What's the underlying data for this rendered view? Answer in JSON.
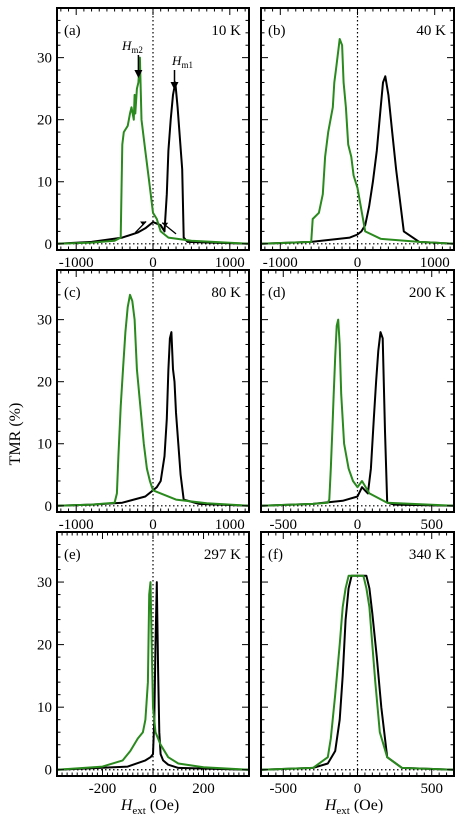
{
  "chart_data": [
    {
      "type": "line",
      "panel": "(a)",
      "temperature": "10 K",
      "xlim": [
        -1250,
        1250
      ],
      "ylim": [
        -1,
        38
      ],
      "xticks": [
        -1000,
        0,
        1000
      ],
      "xtick_labels": [
        "-1000",
        "0",
        "1000"
      ],
      "yticks": [
        0,
        10,
        20,
        30
      ],
      "ytick_labels": [
        "0",
        "10",
        "20",
        "30"
      ],
      "series": [
        {
          "color": "#000000",
          "x": [
            -1250,
            -800,
            -400,
            -200,
            -100,
            0,
            100,
            150,
            180,
            200,
            230,
            260,
            290,
            320,
            350,
            380,
            400,
            450,
            1250
          ],
          "y": [
            0,
            0.3,
            1,
            1.8,
            2.5,
            3.5,
            3,
            2,
            8,
            15,
            20,
            24,
            26,
            22,
            17,
            12,
            1,
            0.3,
            0
          ]
        },
        {
          "color": "#2a8a1e",
          "x": [
            -1250,
            -800,
            -500,
            -420,
            -400,
            -380,
            -330,
            -300,
            -280,
            -250,
            -240,
            -230,
            -210,
            -190,
            -170,
            -150,
            -100,
            -50,
            0,
            50,
            100,
            200,
            500,
            1250
          ],
          "y": [
            0,
            0.2,
            0.5,
            1,
            16,
            18,
            19,
            21,
            22,
            20,
            24,
            21,
            25,
            26,
            30,
            20,
            15,
            10,
            5,
            4,
            2,
            1,
            0.5,
            0
          ]
        }
      ],
      "annotations": {
        "hm2": {
          "label": "H",
          "sub": "m2"
        },
        "hm1": {
          "label": "H",
          "sub": "m1"
        }
      }
    },
    {
      "type": "line",
      "panel": "(b)",
      "temperature": "40 K",
      "xlim": [
        -1250,
        1250
      ],
      "ylim": [
        -1,
        38
      ],
      "xticks": [
        -1000,
        0,
        1000
      ],
      "xtick_labels": [
        "-1000",
        "0",
        "1000"
      ],
      "yticks": [
        0,
        10,
        20,
        30
      ],
      "ytick_labels": [],
      "series": [
        {
          "color": "#000000",
          "x": [
            -1250,
            -600,
            -100,
            0,
            50,
            100,
            150,
            200,
            250,
            300,
            330,
            360,
            400,
            450,
            500,
            600,
            800,
            1250
          ],
          "y": [
            0,
            0.3,
            1,
            1.5,
            2,
            3,
            6,
            10,
            15,
            22,
            26,
            27,
            24,
            18,
            12,
            2,
            0.3,
            0
          ]
        },
        {
          "color": "#2a8a1e",
          "x": [
            -1250,
            -600,
            -580,
            -500,
            -450,
            -420,
            -380,
            -350,
            -320,
            -300,
            -280,
            -250,
            -230,
            -200,
            -180,
            -150,
            -120,
            -80,
            -50,
            0,
            100,
            300,
            800,
            1250
          ],
          "y": [
            0,
            0.3,
            4,
            5,
            8,
            14,
            18,
            20,
            22,
            26,
            28,
            31,
            33,
            32,
            26,
            22,
            16,
            14,
            11,
            9,
            2,
            0.8,
            0.3,
            0
          ]
        }
      ]
    },
    {
      "type": "line",
      "panel": "(c)",
      "temperature": "80 K",
      "xlim": [
        -1250,
        1250
      ],
      "ylim": [
        -1,
        38
      ],
      "xticks": [
        -1000,
        0,
        1000
      ],
      "xtick_labels": [
        "-1000",
        "0",
        "1000"
      ],
      "yticks": [
        0,
        10,
        20,
        30
      ],
      "ytick_labels": [
        "0",
        "10",
        "20",
        "30"
      ],
      "series": [
        {
          "color": "#000000",
          "x": [
            -1250,
            -800,
            -400,
            -100,
            0,
            50,
            100,
            150,
            180,
            200,
            220,
            240,
            260,
            280,
            300,
            330,
            360,
            400,
            600,
            1250
          ],
          "y": [
            0,
            0.2,
            0.5,
            1.5,
            2.5,
            3,
            4,
            8,
            14,
            22,
            27,
            28,
            22,
            20,
            15,
            10,
            5,
            1,
            0.3,
            0
          ]
        },
        {
          "color": "#2a8a1e",
          "x": [
            -1250,
            -800,
            -500,
            -470,
            -450,
            -420,
            -390,
            -360,
            -330,
            -300,
            -270,
            -240,
            -210,
            -180,
            -150,
            -120,
            -80,
            -40,
            0,
            100,
            300,
            700,
            1250
          ],
          "y": [
            0,
            0.2,
            0.5,
            2,
            8,
            16,
            22,
            28,
            32,
            34,
            33,
            30,
            22,
            18,
            14,
            10,
            6,
            4,
            2.5,
            2,
            1,
            0.4,
            0
          ]
        }
      ]
    },
    {
      "type": "line",
      "panel": "(d)",
      "temperature": "200 K",
      "xlim": [
        -650,
        650
      ],
      "ylim": [
        -1,
        38
      ],
      "xticks": [
        -500,
        0,
        500
      ],
      "xtick_labels": [
        "-500",
        "0",
        "500"
      ],
      "yticks": [
        0,
        10,
        20,
        30
      ],
      "ytick_labels": [],
      "series": [
        {
          "color": "#000000",
          "x": [
            -650,
            -300,
            -100,
            0,
            30,
            50,
            70,
            90,
            110,
            125,
            140,
            155,
            170,
            185,
            200,
            250,
            650
          ],
          "y": [
            0,
            0.3,
            0.8,
            1.5,
            3,
            2.5,
            2,
            6,
            14,
            20,
            25,
            28,
            27,
            12,
            0.5,
            0.2,
            0
          ]
        },
        {
          "color": "#2a8a1e",
          "x": [
            -650,
            -300,
            -200,
            -190,
            -180,
            -170,
            -160,
            -150,
            -140,
            -130,
            -120,
            -110,
            -90,
            -60,
            -30,
            0,
            30,
            80,
            200,
            650
          ],
          "y": [
            0,
            0.3,
            0.5,
            1,
            6,
            12,
            18,
            24,
            29,
            30,
            26,
            18,
            10,
            6,
            4,
            3,
            4,
            2,
            0.5,
            0
          ]
        }
      ]
    },
    {
      "type": "line",
      "panel": "(e)",
      "temperature": "297 K",
      "xlim": [
        -380,
        380
      ],
      "ylim": [
        -1,
        38
      ],
      "xticks": [
        -200,
        0,
        200
      ],
      "xtick_labels": [
        "-200",
        "0",
        "200"
      ],
      "yticks": [
        0,
        10,
        20,
        30
      ],
      "ytick_labels": [
        "0",
        "10",
        "20",
        "30"
      ],
      "series": [
        {
          "color": "#000000",
          "x": [
            -380,
            -100,
            -30,
            -10,
            0,
            5,
            10,
            15,
            20,
            25,
            30,
            40,
            60,
            100,
            380
          ],
          "y": [
            0,
            0.5,
            1.5,
            2,
            2.5,
            8,
            20,
            30,
            16,
            6,
            2.5,
            1.5,
            0.8,
            0.3,
            0
          ]
        },
        {
          "color": "#2a8a1e",
          "x": [
            -380,
            -200,
            -120,
            -90,
            -60,
            -40,
            -30,
            -20,
            -15,
            -10,
            -5,
            0,
            10,
            30,
            60,
            100,
            200,
            380
          ],
          "y": [
            0,
            0.5,
            1.5,
            3,
            5,
            6,
            8,
            14,
            28,
            30,
            20,
            10,
            6,
            4,
            2,
            1,
            0.4,
            0
          ]
        }
      ]
    },
    {
      "type": "line",
      "panel": "(f)",
      "temperature": "340 K",
      "xlim": [
        -650,
        650
      ],
      "ylim": [
        -1,
        38
      ],
      "xticks": [
        -500,
        0,
        500
      ],
      "xtick_labels": [
        "-500",
        "0",
        "500"
      ],
      "yticks": [
        0,
        10,
        20,
        30
      ],
      "ytick_labels": [],
      "series": [
        {
          "color": "#000000",
          "x": [
            -650,
            -300,
            -200,
            -150,
            -120,
            -100,
            -80,
            -60,
            -40,
            0,
            40,
            60,
            80,
            100,
            130,
            160,
            200,
            300,
            650
          ],
          "y": [
            0,
            0.3,
            1,
            3,
            8,
            15,
            24,
            29,
            31,
            31,
            31,
            31,
            29,
            25,
            18,
            10,
            2,
            0.3,
            0
          ]
        },
        {
          "color": "#2a8a1e",
          "x": [
            -650,
            -300,
            -200,
            -180,
            -150,
            -120,
            -100,
            -80,
            -60,
            -40,
            0,
            40,
            60,
            80,
            100,
            120,
            150,
            200,
            300,
            650
          ],
          "y": [
            0,
            0.3,
            2,
            5,
            12,
            20,
            26,
            29,
            31,
            31,
            31,
            31,
            29,
            26,
            20,
            14,
            6,
            2,
            0.3,
            0
          ]
        }
      ]
    }
  ],
  "labels": {
    "ylabel": "TMR (%)",
    "xlabel_main": "H",
    "xlabel_sub": "ext",
    "xlabel_unit": " (Oe)"
  }
}
